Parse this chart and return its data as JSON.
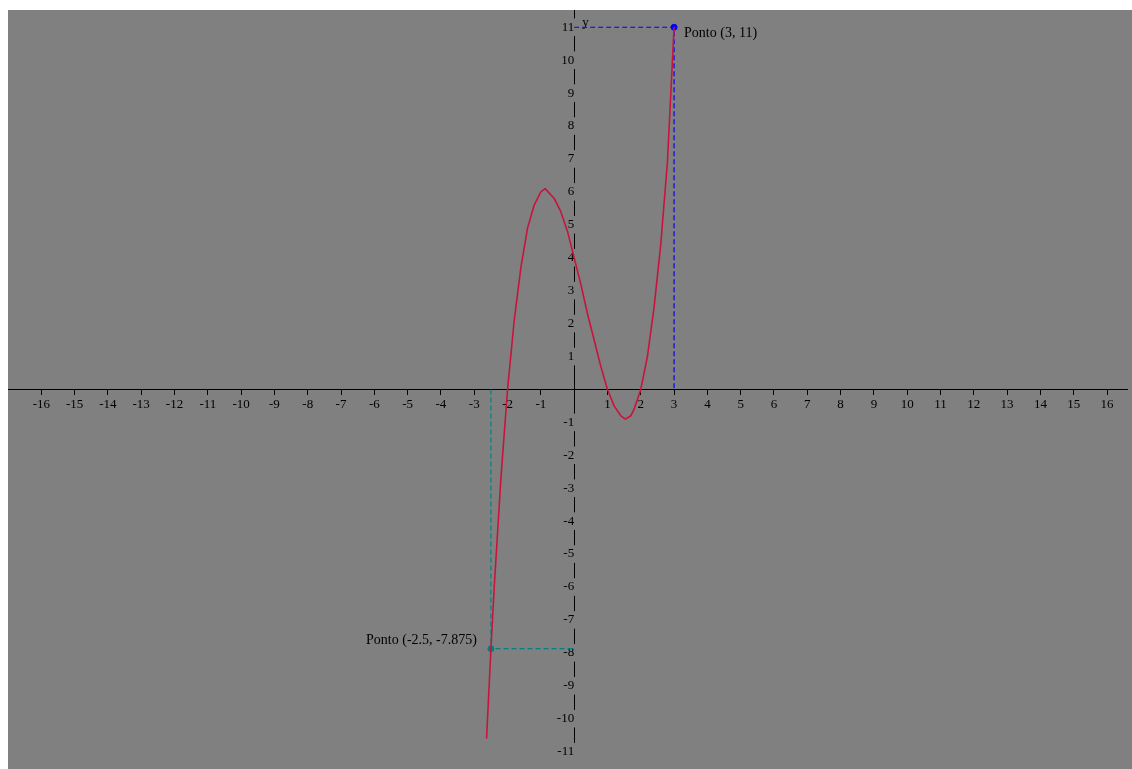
{
  "chart_data": {
    "type": "line",
    "ylabel": "y",
    "xlim": [
      -17,
      16.6
    ],
    "ylim": [
      -11.2,
      11.5
    ],
    "xticks": [
      -16,
      -15,
      -14,
      -13,
      -12,
      -11,
      -10,
      -9,
      -8,
      -7,
      -6,
      -5,
      -4,
      -3,
      -2,
      -1,
      1,
      2,
      3,
      4,
      5,
      6,
      7,
      8,
      9,
      10,
      11,
      12,
      13,
      14,
      15,
      16
    ],
    "yticks": [
      -11,
      -10,
      -9,
      -8,
      -7,
      -6,
      -5,
      -4,
      -3,
      -2,
      -1,
      1,
      2,
      3,
      4,
      5,
      6,
      7,
      8,
      9,
      10,
      11
    ],
    "grid": false,
    "legend": false,
    "series": [
      {
        "color": "#c8143c",
        "marker": "none",
        "line_style": "solid",
        "x": [
          -2.63,
          -2.5,
          -2.4,
          -2.2,
          -2,
          -1.8,
          -1.6,
          -1.4,
          -1.2,
          -1,
          -0.87,
          -0.6,
          -0.4,
          -0.2,
          0,
          0.2,
          0.4,
          0.6,
          0.8,
          1,
          1.2,
          1.4,
          1.54,
          1.7,
          1.8,
          2,
          2.2,
          2.4,
          2.6,
          2.8,
          3
        ],
        "values": [
          -10.6,
          -7.9,
          -6,
          -2.7,
          0,
          2.1,
          3.7,
          4.9,
          5.6,
          6,
          6.1,
          5.8,
          5.4,
          4.8,
          4,
          3.2,
          2.3,
          1.5,
          0.7,
          0,
          -0.5,
          -0.8,
          -0.9,
          -0.8,
          -0.6,
          0,
          1,
          2.5,
          4.4,
          6.9,
          11
        ]
      },
      {
        "color": "#0000ff",
        "marker": "none",
        "line_style": "dashed",
        "x": [
          0,
          3,
          3
        ],
        "values": [
          11,
          11,
          0
        ]
      },
      {
        "color": "#008080",
        "marker": "none",
        "line_style": "dashed",
        "x": [
          -2.5,
          -2.5,
          0
        ],
        "values": [
          0,
          -7.875,
          -7.875
        ]
      },
      {
        "type": "scatter",
        "color": "#0000ff",
        "marker": "circle",
        "x": [
          3
        ],
        "values": [
          11
        ]
      },
      {
        "type": "scatter",
        "color": "#008080",
        "marker": "circle",
        "x": [
          -2.5
        ],
        "values": [
          -7.875
        ]
      }
    ],
    "annotations": [
      {
        "text": "Ponto (3, 11)",
        "x": 3,
        "y": 11
      },
      {
        "text": "Ponto (-2.5, -7.875)",
        "x": -2.5,
        "y": -7.875
      }
    ]
  }
}
